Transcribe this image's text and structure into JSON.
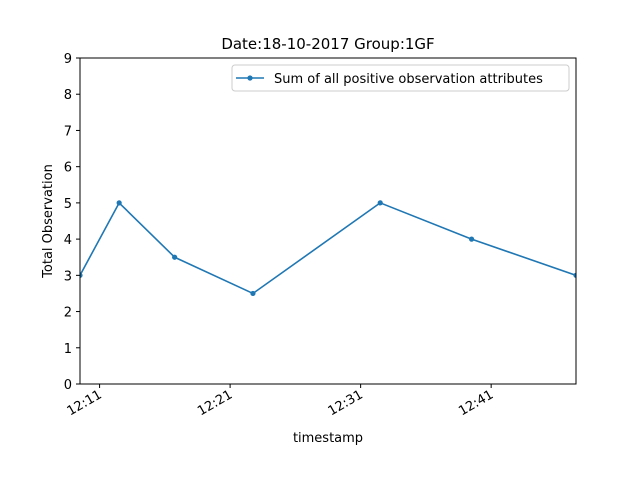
{
  "chart_data": {
    "type": "line",
    "title": "Date:18-10-2017  Group:1GF",
    "xlabel": "timestamp",
    "ylabel": "Total Observation",
    "ylim": [
      0,
      9
    ],
    "yticks": [
      "0",
      "1",
      "2",
      "3",
      "4",
      "5",
      "6",
      "7",
      "8",
      "9"
    ],
    "xlim": [
      "12:09:30",
      "12:47:30"
    ],
    "xticks": [
      {
        "time": "12:11",
        "label": "12:11"
      },
      {
        "time": "12:21",
        "label": "12:21"
      },
      {
        "time": "12:31",
        "label": "12:31"
      },
      {
        "time": "12:41",
        "label": "12:41"
      }
    ],
    "grid": false,
    "legend_position": "top-right",
    "series": [
      {
        "name": "Sum of all positive observation attributes",
        "color": "#1f77b4",
        "marker": "point",
        "points": [
          {
            "x": "12:09:30",
            "y": 3
          },
          {
            "x": "12:12:30",
            "y": 5
          },
          {
            "x": "12:16:45",
            "y": 3.5
          },
          {
            "x": "12:22:45",
            "y": 2.5
          },
          {
            "x": "12:32:30",
            "y": 5
          },
          {
            "x": "12:39:30",
            "y": 4
          },
          {
            "x": "12:47:30",
            "y": 3
          }
        ]
      }
    ]
  }
}
